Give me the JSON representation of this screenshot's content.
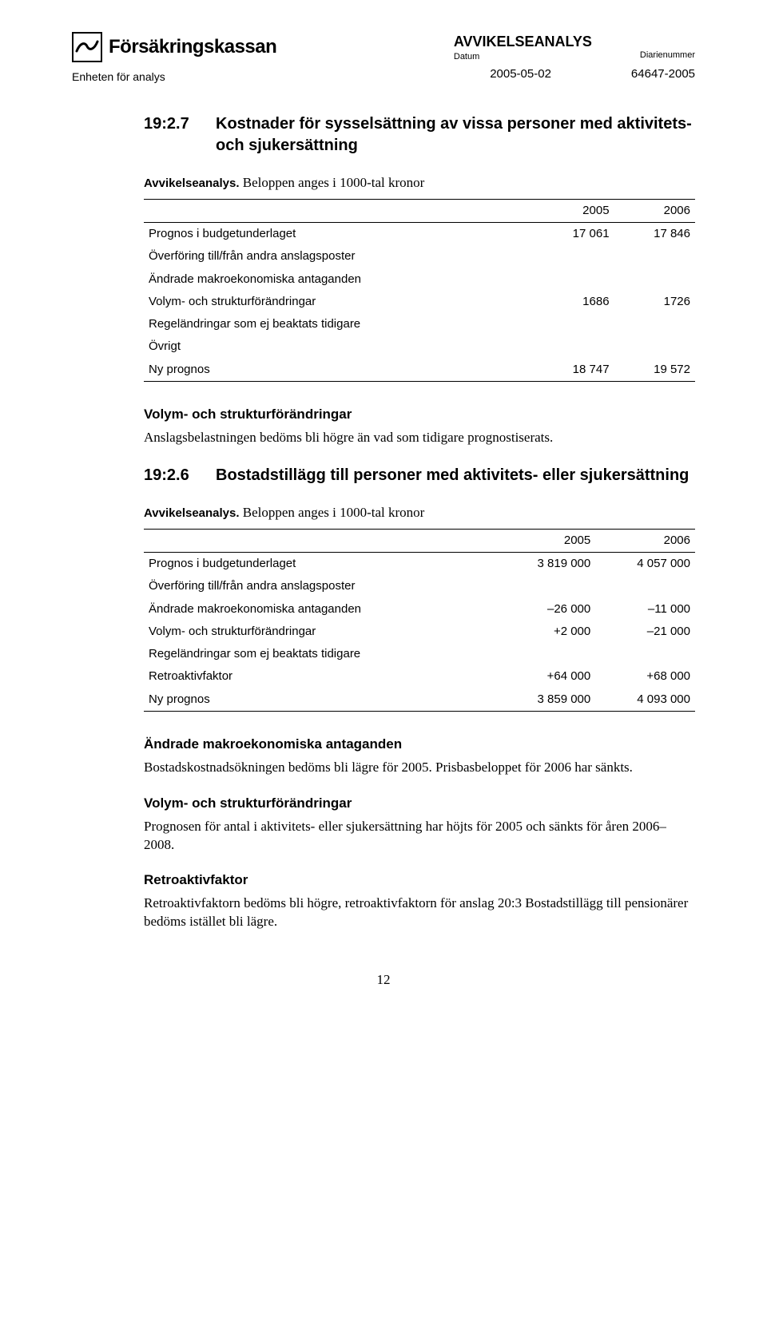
{
  "header": {
    "brand": "Försäkringskassan",
    "subbrand": "Enheten för analys",
    "doc_type": "AVVIKELSEANALYS",
    "date_label": "Datum",
    "date_value": "2005-05-02",
    "ref_label": "Diarienummer",
    "ref_value": "64647-2005"
  },
  "sec1": {
    "num": "19:2.7",
    "title": "Kostnader för sysselsättning av vissa personer med aktivitets- och sjukersättning",
    "caption": "Avvikelseanalys.",
    "caption_tail": " Beloppen anges i 1000-tal kronor"
  },
  "table1": {
    "col1": "2005",
    "col2": "2006",
    "rows": [
      {
        "label": "Prognos i budgetunderlaget",
        "v1": "17 061",
        "v2": "17 846"
      },
      {
        "label": "Överföring till/från andra anslagsposter",
        "v1": "",
        "v2": ""
      },
      {
        "label": "Ändrade makroekonomiska antaganden",
        "v1": "",
        "v2": ""
      },
      {
        "label": "Volym- och strukturförändringar",
        "v1": "1686",
        "v2": "1726"
      },
      {
        "label": "Regeländringar som ej beaktats tidigare",
        "v1": "",
        "v2": ""
      },
      {
        "label": "Övrigt",
        "v1": "",
        "v2": ""
      },
      {
        "label": "Ny prognos",
        "v1": "18 747",
        "v2": "19 572"
      }
    ]
  },
  "para1": {
    "head": "Volym- och strukturförändringar",
    "body": "Anslagsbelastningen bedöms bli högre än vad som tidigare prognostiserats."
  },
  "sec2": {
    "num": "19:2.6",
    "title": "Bostadstillägg till personer med aktivitets- eller sjukersättning",
    "caption": "Avvikelseanalys.",
    "caption_tail": " Beloppen anges i 1000-tal kronor"
  },
  "table2": {
    "col1": "2005",
    "col2": "2006",
    "rows": [
      {
        "label": "Prognos i budgetunderlaget",
        "v1": "3 819 000",
        "v2": "4 057 000"
      },
      {
        "label": "Överföring till/från andra anslagsposter",
        "v1": "",
        "v2": ""
      },
      {
        "label": "Ändrade makroekonomiska antaganden",
        "v1": "–26 000",
        "v2": "–11 000"
      },
      {
        "label": "Volym- och strukturförändringar",
        "v1": "+2 000",
        "v2": "–21 000"
      },
      {
        "label": "Regeländringar som ej beaktats tidigare",
        "v1": "",
        "v2": ""
      },
      {
        "label": "Retroaktivfaktor",
        "v1": "+64 000",
        "v2": "+68 000"
      },
      {
        "label": "Ny prognos",
        "v1": "3 859 000",
        "v2": "4 093 000"
      }
    ]
  },
  "para2": {
    "head": "Ändrade makroekonomiska antaganden",
    "body": "Bostadskostnadsökningen bedöms bli lägre för 2005. Prisbasbeloppet för 2006 har sänkts."
  },
  "para3": {
    "head": "Volym- och strukturförändringar",
    "body": "Prognosen för antal i aktivitets- eller sjukersättning har höjts för 2005 och sänkts för åren 2006–2008."
  },
  "para4": {
    "head": "Retroaktivfaktor",
    "body": "Retroaktivfaktorn bedöms bli högre, retroaktivfaktorn för anslag 20:3 Bostadstillägg till pensionärer bedöms istället bli lägre."
  },
  "page_number": "12"
}
